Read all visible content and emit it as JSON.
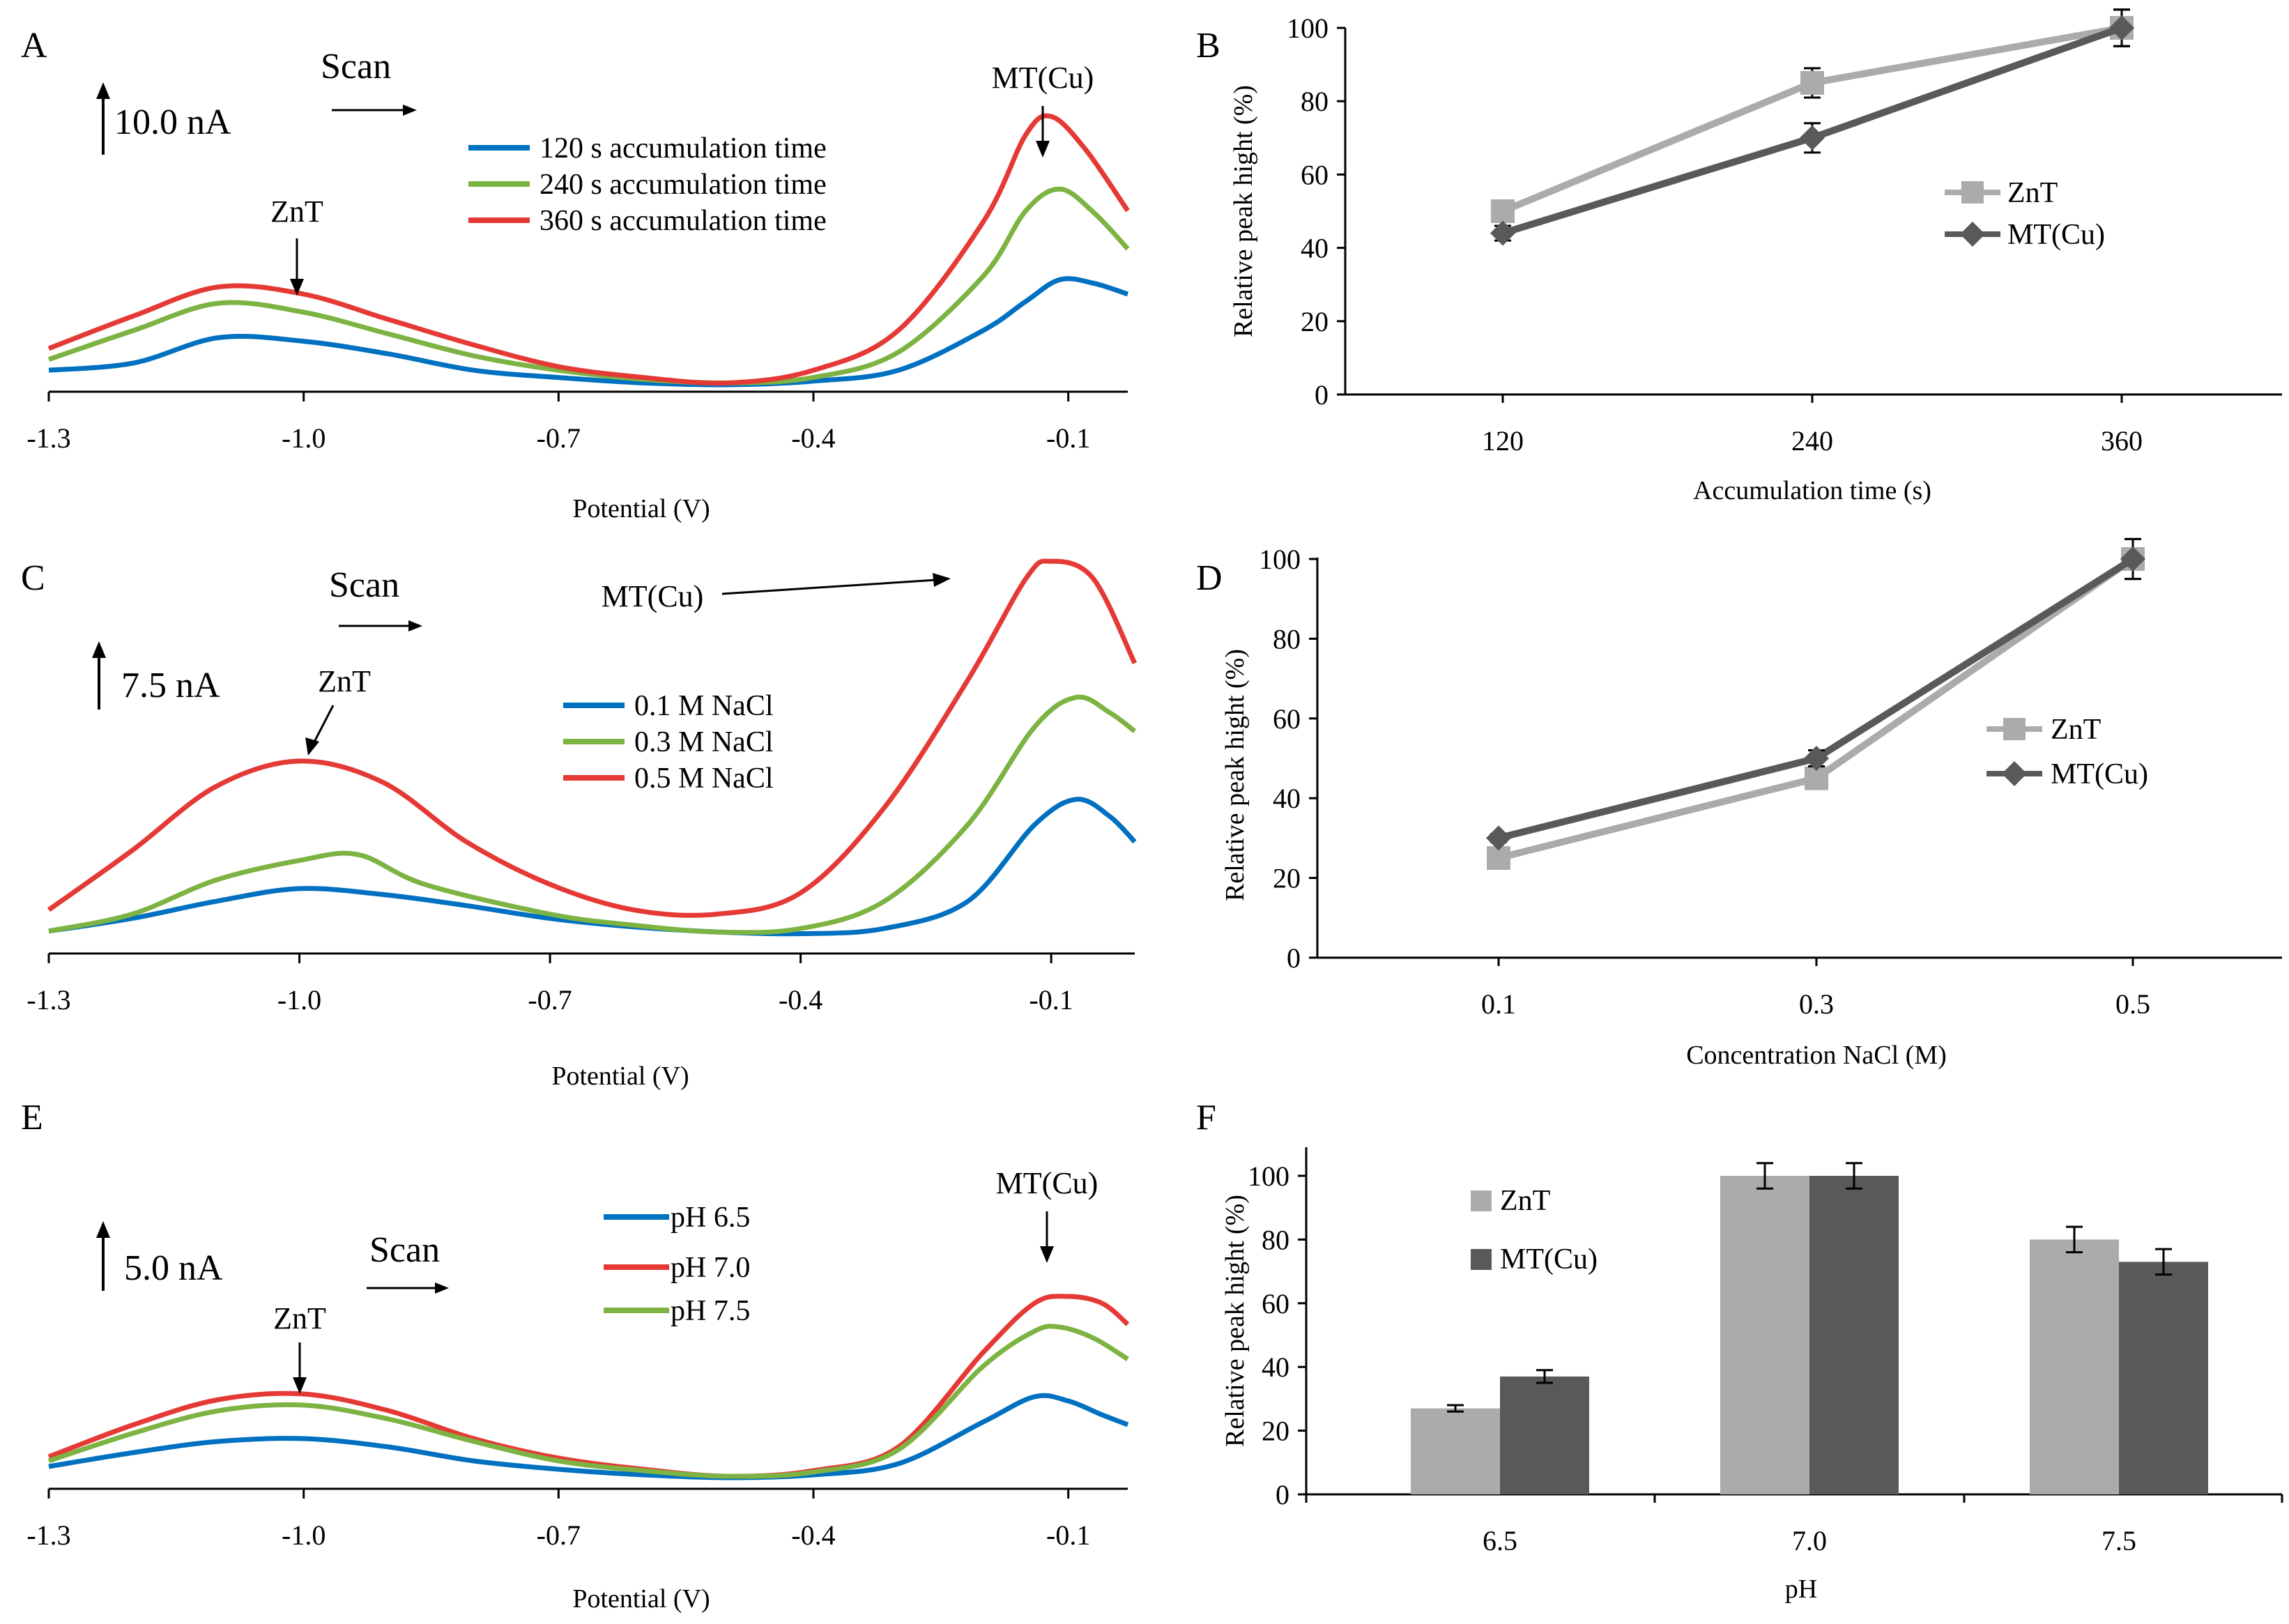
{
  "chart_data": [
    {
      "panel": "A",
      "type": "line",
      "title": "",
      "xlabel": "Potential (V)",
      "ylabel": "",
      "xlim": [
        -1.3,
        -0.03
      ],
      "x_ticks": [
        "-1.3",
        "-1.0",
        "-0.7",
        "-0.4",
        "-0.1"
      ],
      "scale_bar": "10.0 nA",
      "annotations": {
        "scan": "Scan",
        "peak1": "ZnT",
        "peak2": "MT(Cu)"
      },
      "legend": "top-center",
      "series": [
        {
          "name": "120 s accumulation time",
          "color": "#0070C0",
          "points": [
            [
              -1.3,
              8
            ],
            [
              -1.2,
              12
            ],
            [
              -1.1,
              26
            ],
            [
              -1.0,
              24
            ],
            [
              -0.9,
              17
            ],
            [
              -0.8,
              8
            ],
            [
              -0.7,
              4
            ],
            [
              -0.6,
              1
            ],
            [
              -0.5,
              0
            ],
            [
              -0.4,
              2
            ],
            [
              -0.3,
              8
            ],
            [
              -0.2,
              30
            ],
            [
              -0.15,
              46
            ],
            [
              -0.11,
              58
            ],
            [
              -0.07,
              56
            ],
            [
              -0.03,
              50
            ]
          ]
        },
        {
          "name": "240 s accumulation time",
          "color": "#7CB342",
          "points": [
            [
              -1.3,
              14
            ],
            [
              -1.2,
              30
            ],
            [
              -1.1,
              45
            ],
            [
              -1.0,
              40
            ],
            [
              -0.9,
              28
            ],
            [
              -0.8,
              16
            ],
            [
              -0.7,
              8
            ],
            [
              -0.6,
              3
            ],
            [
              -0.5,
              1
            ],
            [
              -0.4,
              4
            ],
            [
              -0.3,
              18
            ],
            [
              -0.2,
              60
            ],
            [
              -0.15,
              96
            ],
            [
              -0.11,
              108
            ],
            [
              -0.07,
              95
            ],
            [
              -0.03,
              75
            ]
          ]
        },
        {
          "name": "360 s accumulation time",
          "color": "#E53935",
          "points": [
            [
              -1.3,
              20
            ],
            [
              -1.2,
              38
            ],
            [
              -1.1,
              54
            ],
            [
              -1.0,
              50
            ],
            [
              -0.9,
              36
            ],
            [
              -0.8,
              22
            ],
            [
              -0.7,
              10
            ],
            [
              -0.6,
              4
            ],
            [
              -0.5,
              1
            ],
            [
              -0.4,
              8
            ],
            [
              -0.3,
              30
            ],
            [
              -0.2,
              90
            ],
            [
              -0.15,
              138
            ],
            [
              -0.12,
              148
            ],
            [
              -0.08,
              130
            ],
            [
              -0.03,
              96
            ]
          ]
        }
      ]
    },
    {
      "panel": "B",
      "type": "line",
      "xlabel": "Accumulation time (s)",
      "ylabel": "Relative peak hight (%)",
      "categories": [
        "120",
        "240",
        "360"
      ],
      "ylim": [
        0,
        100
      ],
      "y_ticks": [
        "0",
        "20",
        "40",
        "60",
        "80",
        "100"
      ],
      "legend": "right",
      "series": [
        {
          "name": "ZnT",
          "color": "#ABABAB",
          "marker": "square",
          "values": [
            50,
            85,
            100
          ],
          "errors": [
            2,
            4,
            5
          ]
        },
        {
          "name": "MT(Cu)",
          "color": "#595959",
          "marker": "diamond",
          "values": [
            44,
            70,
            100
          ],
          "errors": [
            2,
            4,
            5
          ]
        }
      ]
    },
    {
      "panel": "C",
      "type": "line",
      "xlabel": "Potential (V)",
      "ylabel": "",
      "xlim": [
        -1.3,
        -0.0
      ],
      "x_ticks": [
        "-1.3",
        "-1.0",
        "-0.7",
        "-0.4",
        "-0.1"
      ],
      "scale_bar": "7.5 nA",
      "annotations": {
        "scan": "Scan",
        "peak1": "ZnT",
        "peak2": "MT(Cu)"
      },
      "legend": "center",
      "series": [
        {
          "name": "0.1 M NaCl",
          "color": "#0070C0",
          "points": [
            [
              -1.3,
              5
            ],
            [
              -1.2,
              20
            ],
            [
              -1.1,
              40
            ],
            [
              -1.0,
              55
            ],
            [
              -0.9,
              48
            ],
            [
              -0.8,
              35
            ],
            [
              -0.7,
              20
            ],
            [
              -0.6,
              10
            ],
            [
              -0.5,
              4
            ],
            [
              -0.4,
              2
            ],
            [
              -0.3,
              8
            ],
            [
              -0.2,
              40
            ],
            [
              -0.12,
              130
            ],
            [
              -0.07,
              160
            ],
            [
              -0.03,
              140
            ],
            [
              0.0,
              110
            ]
          ]
        },
        {
          "name": "0.3 M NaCl",
          "color": "#7CB342",
          "points": [
            [
              -1.3,
              5
            ],
            [
              -1.2,
              25
            ],
            [
              -1.1,
              65
            ],
            [
              -1.0,
              88
            ],
            [
              -0.93,
              95
            ],
            [
              -0.85,
              60
            ],
            [
              -0.7,
              25
            ],
            [
              -0.6,
              12
            ],
            [
              -0.5,
              4
            ],
            [
              -0.4,
              8
            ],
            [
              -0.3,
              40
            ],
            [
              -0.2,
              130
            ],
            [
              -0.12,
              245
            ],
            [
              -0.07,
              280
            ],
            [
              -0.03,
              262
            ],
            [
              0.0,
              240
            ]
          ]
        },
        {
          "name": "0.5 M NaCl",
          "color": "#E53935",
          "points": [
            [
              -1.3,
              30
            ],
            [
              -1.2,
              100
            ],
            [
              -1.1,
              175
            ],
            [
              -1.0,
              205
            ],
            [
              -0.9,
              180
            ],
            [
              -0.8,
              110
            ],
            [
              -0.7,
              60
            ],
            [
              -0.6,
              30
            ],
            [
              -0.5,
              25
            ],
            [
              -0.4,
              50
            ],
            [
              -0.3,
              150
            ],
            [
              -0.2,
              300
            ],
            [
              -0.13,
              420
            ],
            [
              -0.1,
              440
            ],
            [
              -0.05,
              420
            ],
            [
              0.0,
              320
            ]
          ]
        }
      ]
    },
    {
      "panel": "D",
      "type": "line",
      "xlabel": "Concentration NaCl (M)",
      "ylabel": "Relative peak hight (%)",
      "categories": [
        "0.1",
        "0.3",
        "0.5"
      ],
      "ylim": [
        0,
        100
      ],
      "y_ticks": [
        "0",
        "20",
        "40",
        "60",
        "80",
        "100"
      ],
      "legend": "right",
      "series": [
        {
          "name": "ZnT",
          "color": "#ABABAB",
          "marker": "square",
          "values": [
            25,
            45,
            100
          ],
          "errors": [
            1,
            2,
            5
          ]
        },
        {
          "name": "MT(Cu)",
          "color": "#595959",
          "marker": "diamond",
          "values": [
            30,
            50,
            100
          ],
          "errors": [
            1,
            2,
            5
          ]
        }
      ]
    },
    {
      "panel": "E",
      "type": "line",
      "xlabel": "Potential (V)",
      "ylabel": "",
      "xlim": [
        -1.3,
        -0.03
      ],
      "x_ticks": [
        "-1.3",
        "-1.0",
        "-0.7",
        "-0.4",
        "-0.1"
      ],
      "scale_bar": "5.0 nA",
      "annotations": {
        "scan": "Scan",
        "peak1": "ZnT",
        "peak2": "MT(Cu)"
      },
      "legend": "top-center",
      "series": [
        {
          "name": "pH 6.5",
          "color": "#0070C0",
          "points": [
            [
              -1.3,
              8
            ],
            [
              -1.2,
              18
            ],
            [
              -1.1,
              26
            ],
            [
              -1.0,
              28
            ],
            [
              -0.9,
              22
            ],
            [
              -0.8,
              12
            ],
            [
              -0.7,
              6
            ],
            [
              -0.6,
              2
            ],
            [
              -0.5,
              0
            ],
            [
              -0.4,
              2
            ],
            [
              -0.3,
              10
            ],
            [
              -0.2,
              40
            ],
            [
              -0.14,
              58
            ],
            [
              -0.1,
              55
            ],
            [
              -0.06,
              45
            ],
            [
              -0.03,
              38
            ]
          ]
        },
        {
          "name": "pH 7.0",
          "color": "#E53935",
          "points": [
            [
              -1.3,
              15
            ],
            [
              -1.2,
              38
            ],
            [
              -1.1,
              56
            ],
            [
              -1.0,
              60
            ],
            [
              -0.9,
              48
            ],
            [
              -0.8,
              28
            ],
            [
              -0.7,
              14
            ],
            [
              -0.6,
              6
            ],
            [
              -0.5,
              1
            ],
            [
              -0.4,
              5
            ],
            [
              -0.3,
              22
            ],
            [
              -0.2,
              90
            ],
            [
              -0.14,
              125
            ],
            [
              -0.1,
              130
            ],
            [
              -0.06,
              125
            ],
            [
              -0.03,
              110
            ]
          ]
        },
        {
          "name": "pH 7.5",
          "color": "#7CB342",
          "points": [
            [
              -1.3,
              12
            ],
            [
              -1.2,
              32
            ],
            [
              -1.1,
              48
            ],
            [
              -1.0,
              52
            ],
            [
              -0.9,
              42
            ],
            [
              -0.8,
              26
            ],
            [
              -0.7,
              12
            ],
            [
              -0.6,
              5
            ],
            [
              -0.5,
              1
            ],
            [
              -0.4,
              4
            ],
            [
              -0.3,
              20
            ],
            [
              -0.2,
              80
            ],
            [
              -0.14,
              105
            ],
            [
              -0.11,
              108
            ],
            [
              -0.07,
              100
            ],
            [
              -0.03,
              85
            ]
          ]
        }
      ]
    },
    {
      "panel": "F",
      "type": "bar",
      "xlabel": "pH",
      "ylabel": "Relative peak hight (%)",
      "categories": [
        "6.5",
        "7.0",
        "7.5"
      ],
      "ylim": [
        0,
        110
      ],
      "y_ticks": [
        "0",
        "20",
        "40",
        "60",
        "80",
        "100"
      ],
      "legend": "top-left",
      "series": [
        {
          "name": "ZnT",
          "color": "#ABABAB",
          "values": [
            27,
            100,
            80
          ],
          "errors": [
            1,
            4,
            4
          ]
        },
        {
          "name": "MT(Cu)",
          "color": "#595959",
          "values": [
            37,
            100,
            73
          ],
          "errors": [
            2,
            4,
            4
          ]
        }
      ]
    }
  ]
}
